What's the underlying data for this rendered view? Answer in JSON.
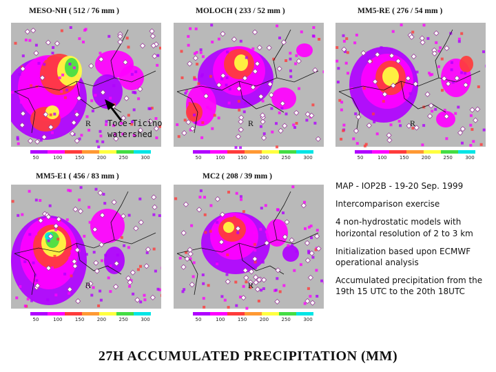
{
  "panels": [
    {
      "id": "meso-nh",
      "title": "MESO-NH  ( 512 / 76 mm )",
      "ticks": [
        "50",
        "100",
        "150",
        "200",
        "250",
        "300"
      ]
    },
    {
      "id": "moloch",
      "title": "MOLOCH  ( 233 / 52 mm )",
      "ticks": [
        "50",
        "100",
        "150",
        "200",
        "250",
        "300"
      ]
    },
    {
      "id": "mm5-re",
      "title": "MM5-RE ( 276 / 54 mm )",
      "ticks": [
        "50",
        "100",
        "150",
        "200",
        "250",
        "300"
      ]
    },
    {
      "id": "mm5-e1",
      "title": "MM5-E1  ( 456 / 83 mm )",
      "ticks": [
        "50",
        "100",
        "150",
        "200",
        "250",
        "300"
      ]
    },
    {
      "id": "mc2",
      "title": "MC2  ( 208 / 39 mm )",
      "ticks": [
        "50",
        "100",
        "150",
        "200",
        "250",
        "300"
      ]
    }
  ],
  "map_label_r": "R",
  "annotation": [
    "Toce-Ticino",
    "watershed"
  ],
  "notes": [
    "MAP - IOP2B - 19-20 Sep. 1999",
    "Intercomparison exercise",
    "4 non-hydrostatic models with horizontal resolution of 2 to 3 km",
    "Initialization based upon ECMWF operational analysis",
    "Accumulated precipitation from the 19th 15 UTC to the 20th 18UTC"
  ],
  "main_title": "27H ACCUMULATED PRECIPITATION (MM)",
  "colors": {
    "background_map": "#b9b9b9",
    "magenta": "#ff00ff",
    "purple": "#b000ff",
    "red": "#ff3b3b",
    "yellow": "#ffff40",
    "green": "#44dd44",
    "cyan": "#00e5e5"
  }
}
